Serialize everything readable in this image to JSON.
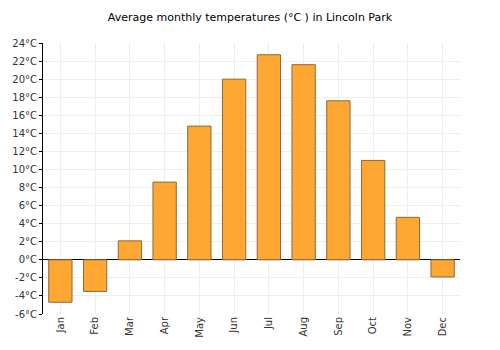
{
  "chart_data": {
    "type": "bar",
    "title": "Average monthly temperatures (°C ) in Lincoln Park",
    "categories": [
      "Jan",
      "Feb",
      "Mar",
      "Apr",
      "May",
      "Jun",
      "Jul",
      "Aug",
      "Sep",
      "Oct",
      "Nov",
      "Dec"
    ],
    "values": [
      -4.7,
      -3.5,
      2.1,
      8.6,
      14.8,
      20.0,
      22.7,
      21.6,
      17.6,
      11.0,
      4.7,
      -1.9
    ],
    "color": "#ffa733",
    "ylim": [
      -6,
      24
    ],
    "yticks": [
      {
        "value": -6,
        "label": "-6°C"
      },
      {
        "value": -4,
        "label": "-4°C"
      },
      {
        "value": -2,
        "label": "-2°C"
      },
      {
        "value": 0,
        "label": "0°C"
      },
      {
        "value": 2,
        "label": "2°C"
      },
      {
        "value": 4,
        "label": "4°C"
      },
      {
        "value": 6,
        "label": "6°C"
      },
      {
        "value": 8,
        "label": "8°C"
      },
      {
        "value": 10,
        "label": "10°C"
      },
      {
        "value": 12,
        "label": "12°C"
      },
      {
        "value": 14,
        "label": "14°C"
      },
      {
        "value": 16,
        "label": "16°C"
      },
      {
        "value": 18,
        "label": "18°C"
      },
      {
        "value": 20,
        "label": "20°C"
      },
      {
        "value": 22,
        "label": "22°C"
      },
      {
        "value": 24,
        "label": "24°C"
      }
    ],
    "grid": true
  }
}
